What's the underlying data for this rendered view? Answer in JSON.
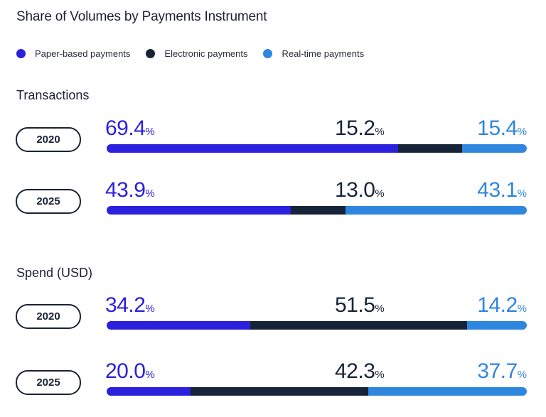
{
  "title": "Share of Volumes by Payments Instrument",
  "colors": {
    "paper": "#2b20dc",
    "electronic": "#172438",
    "realtime": "#2e86df"
  },
  "legend": [
    {
      "label": "Paper-based payments",
      "key": "paper"
    },
    {
      "label": "Electronic payments",
      "key": "electronic"
    },
    {
      "label": "Real-time payments",
      "key": "realtime"
    }
  ],
  "sections": [
    {
      "title": "Transactions",
      "rows": [
        {
          "year": "2020",
          "paper": "69.4",
          "electronic": "15.2",
          "realtime": "15.4"
        },
        {
          "year": "2025",
          "paper": "43.9",
          "electronic": "13.0",
          "realtime": "43.1"
        }
      ]
    },
    {
      "title": "Spend (USD)",
      "rows": [
        {
          "year": "2020",
          "paper": "34.2",
          "electronic": "51.5",
          "realtime": "14.2"
        },
        {
          "year": "2025",
          "paper": "20.0",
          "electronic": "42.3",
          "realtime": "37.7"
        }
      ]
    }
  ],
  "pct_symbol": "%",
  "chart_data": {
    "type": "bar",
    "stacked": true,
    "orientation": "horizontal",
    "title": "Share of Volumes by Payments Instrument",
    "legend": [
      "Paper-based payments",
      "Electronic payments",
      "Real-time payments"
    ],
    "groups": [
      {
        "title": "Transactions",
        "categories": [
          "2020",
          "2025"
        ],
        "series": [
          {
            "name": "Paper-based payments",
            "values": [
              69.4,
              43.9
            ]
          },
          {
            "name": "Electronic payments",
            "values": [
              15.2,
              13.0
            ]
          },
          {
            "name": "Real-time payments",
            "values": [
              15.4,
              43.1
            ]
          }
        ]
      },
      {
        "title": "Spend (USD)",
        "categories": [
          "2020",
          "2025"
        ],
        "series": [
          {
            "name": "Paper-based payments",
            "values": [
              34.2,
              20.0
            ]
          },
          {
            "name": "Electronic payments",
            "values": [
              51.5,
              42.3
            ]
          },
          {
            "name": "Real-time payments",
            "values": [
              14.2,
              37.7
            ]
          }
        ]
      }
    ],
    "xlim": [
      0,
      100
    ],
    "legend_position": "top-left"
  }
}
